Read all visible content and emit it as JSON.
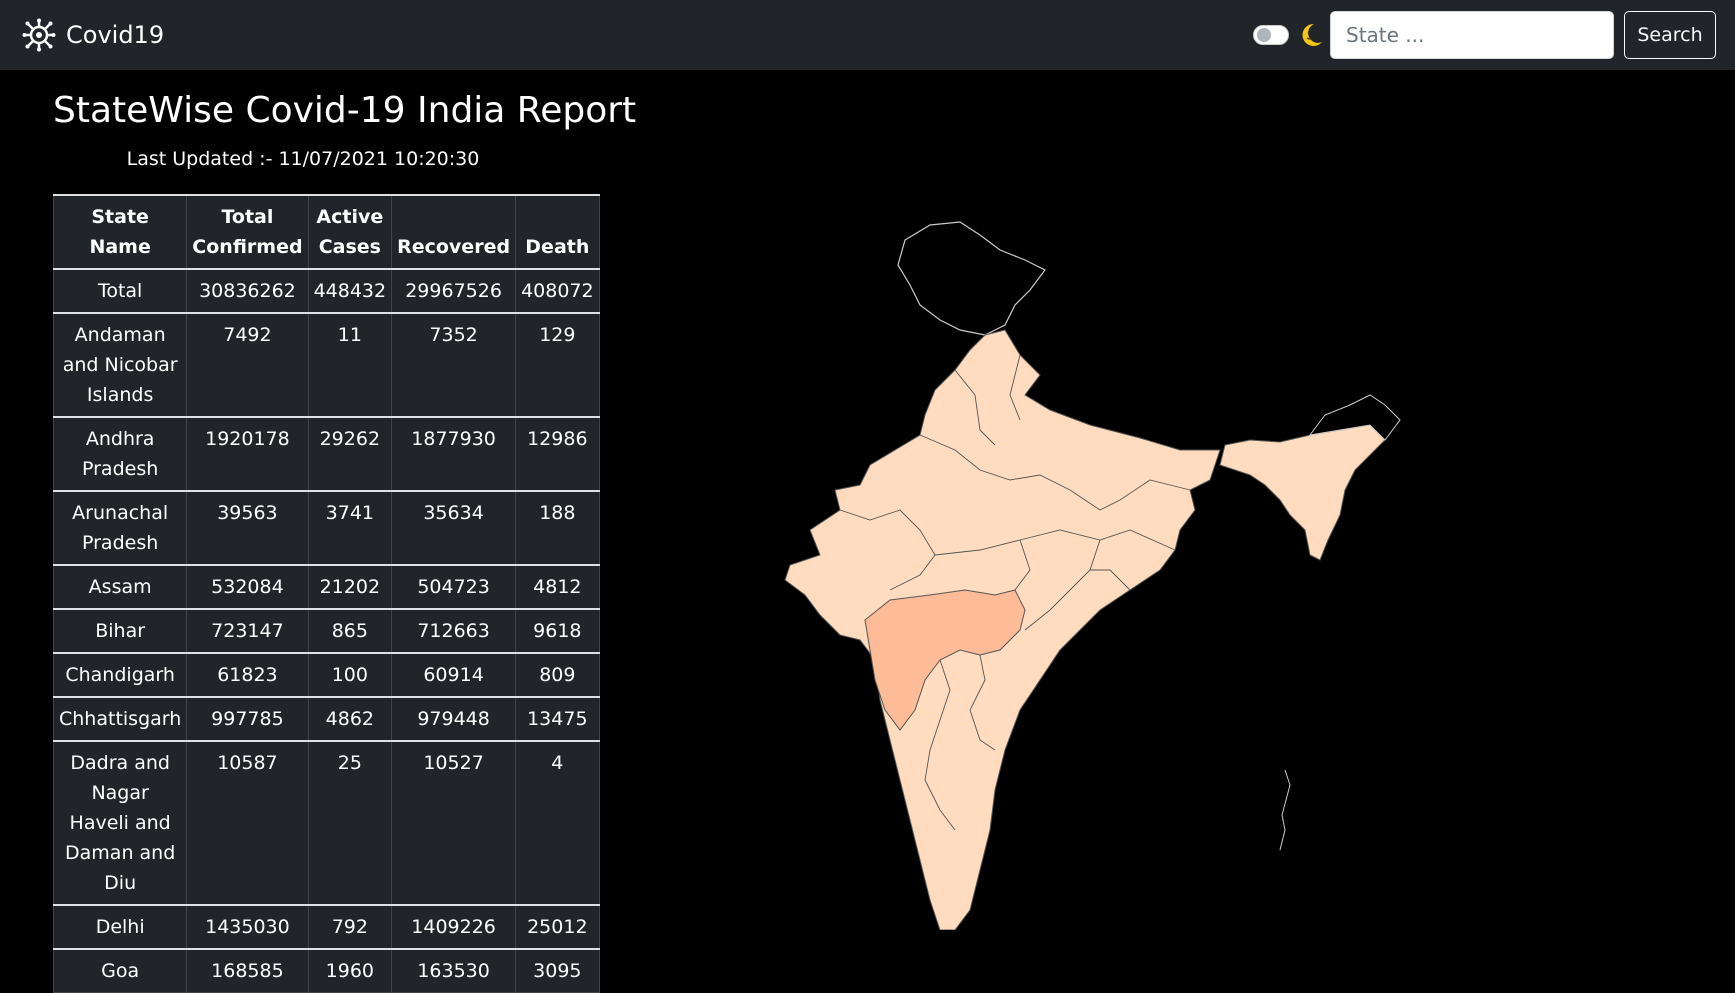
{
  "nav": {
    "brand": "Covid19",
    "search_placeholder": "State ...",
    "search_button": "Search"
  },
  "page": {
    "title": "StateWise Covid-19 India Report",
    "last_updated": "Last Updated :- 11/07/2021 10:20:30"
  },
  "table": {
    "headers": [
      "State Name",
      "Total Confirmed",
      "Active Cases",
      "Recovered",
      "Death"
    ],
    "rows": [
      [
        "Total",
        "30836262",
        "448432",
        "29967526",
        "408072"
      ],
      [
        "Andaman and Nicobar Islands",
        "7492",
        "11",
        "7352",
        "129"
      ],
      [
        "Andhra Pradesh",
        "1920178",
        "29262",
        "1877930",
        "12986"
      ],
      [
        "Arunachal Pradesh",
        "39563",
        "3741",
        "35634",
        "188"
      ],
      [
        "Assam",
        "532084",
        "21202",
        "504723",
        "4812"
      ],
      [
        "Bihar",
        "723147",
        "865",
        "712663",
        "9618"
      ],
      [
        "Chandigarh",
        "61823",
        "100",
        "60914",
        "809"
      ],
      [
        "Chhattisgarh",
        "997785",
        "4862",
        "979448",
        "13475"
      ],
      [
        "Dadra and Nagar Haveli and Daman and Diu",
        "10587",
        "25",
        "10527",
        "4"
      ],
      [
        "Delhi",
        "1435030",
        "792",
        "1409226",
        "25012"
      ],
      [
        "Goa",
        "168585",
        "1960",
        "163530",
        "3095"
      ]
    ]
  },
  "colors": {
    "navbar": "#212529",
    "map_fill": "#ffdcbf",
    "map_highlight": "#fdbb98",
    "map_stroke": "#555555"
  }
}
